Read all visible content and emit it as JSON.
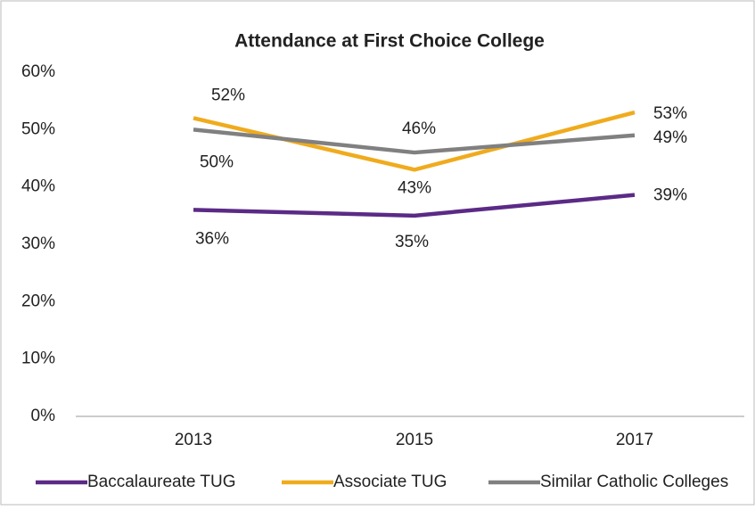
{
  "chart_data": {
    "type": "line",
    "title": "Attendance at First Choice College",
    "categories": [
      "2013",
      "2015",
      "2017"
    ],
    "series": [
      {
        "name": "Baccalaureate TUG",
        "color": "#5b2a86",
        "values": [
          36,
          35,
          38.6
        ],
        "value_labels": [
          "36%",
          "35%",
          "39%"
        ]
      },
      {
        "name": "Associate TUG",
        "color": "#f0ab1d",
        "values": [
          52,
          43,
          53
        ],
        "value_labels": [
          "52%",
          "43%",
          "53%"
        ]
      },
      {
        "name": "Similar Catholic Colleges",
        "color": "#808080",
        "values": [
          50,
          46,
          49
        ],
        "value_labels": [
          "50%",
          "46%",
          "49%"
        ]
      }
    ],
    "ylim": [
      0,
      60
    ],
    "yticks": [
      {
        "value": 0,
        "label": "0%"
      },
      {
        "value": 10,
        "label": "10%"
      },
      {
        "value": 20,
        "label": "20%"
      },
      {
        "value": 30,
        "label": "30%"
      },
      {
        "value": 40,
        "label": "40%"
      },
      {
        "value": 50,
        "label": "50%"
      },
      {
        "value": 60,
        "label": "60%"
      }
    ],
    "grid": false,
    "legend": "bottom"
  }
}
